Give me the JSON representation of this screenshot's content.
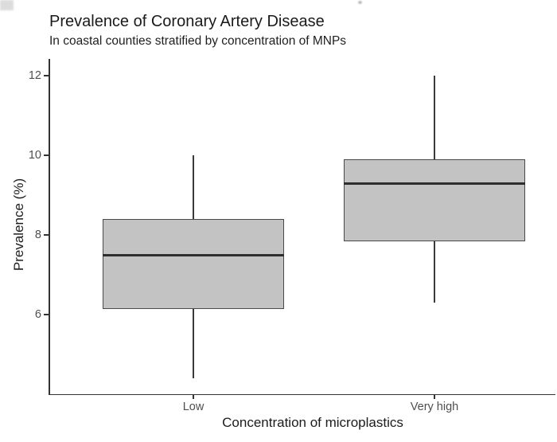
{
  "chart": {
    "title": "Prevalence of Coronary Artery Disease",
    "subtitle": "In coastal counties stratified by concentration of MNPs",
    "xlabel": "Concentration of microplastics",
    "ylabel": "Prevalence (%)"
  },
  "chart_data": {
    "type": "boxplot",
    "title": "Prevalence of Coronary Artery Disease",
    "subtitle": "In coastal counties stratified by concentration of MNPs",
    "xlabel": "Concentration of microplastics",
    "ylabel": "Prevalence (%)",
    "categories": [
      "Low",
      "Very high"
    ],
    "series": [
      {
        "name": "Low",
        "min": 4.4,
        "q1": 6.15,
        "median": 7.5,
        "q3": 8.4,
        "max": 10.0
      },
      {
        "name": "Very high",
        "min": 6.3,
        "q1": 7.85,
        "median": 9.3,
        "q3": 9.9,
        "max": 12.0
      }
    ],
    "yticks": [
      6,
      8,
      10,
      12
    ],
    "ylim": [
      4.0,
      12.45
    ],
    "grid": false,
    "legend": "none",
    "orientation": "vertical",
    "colors": {
      "box_fill": "#c3c3c3",
      "box_border": "#4a4a4a",
      "median": "#2e2e2e",
      "whisker": "#3a3a3a",
      "axis": "#333333",
      "tick_label": "#4f4f4f",
      "title_text": "#1a1a1a"
    }
  }
}
